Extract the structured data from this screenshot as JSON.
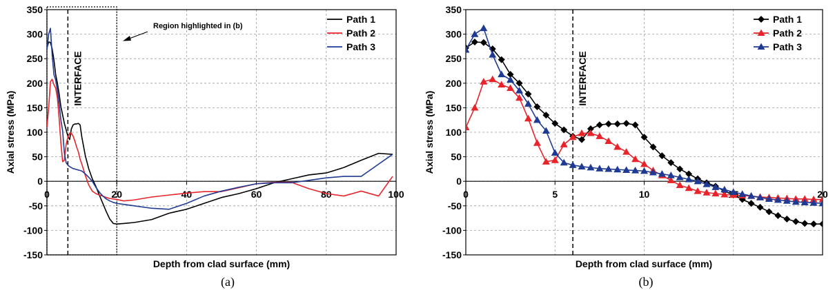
{
  "chart_data": [
    {
      "panel": "(a)",
      "type": "line",
      "xlabel": "Depth from clad surface (mm)",
      "ylabel": "Axial stress (MPa)",
      "xlim": [
        0,
        100
      ],
      "ylim": [
        -150,
        350
      ],
      "xticks": [
        "0",
        "20",
        "40",
        "60",
        "80",
        "100"
      ],
      "yticks": [
        "-150",
        "-100",
        "-50",
        "0",
        "50",
        "100",
        "150",
        "200",
        "250",
        "300",
        "350"
      ],
      "grid": true,
      "legend_position": "top-right",
      "annotation": "INTERFACE",
      "interface_x": 6,
      "highlight_note": "Region highlighted in (b)",
      "highlight_x": [
        0,
        20
      ],
      "series": [
        {
          "name": "Path 1",
          "color": "#000000",
          "x": [
            0,
            0.5,
            1,
            1.5,
            2,
            2.5,
            3,
            3.5,
            4,
            4.5,
            5,
            5.5,
            6,
            6.5,
            7,
            7.5,
            8,
            8.5,
            9,
            9.5,
            10,
            11,
            12,
            13,
            14,
            15,
            16,
            17,
            18,
            19,
            20,
            22,
            25,
            30,
            35,
            40,
            45,
            50,
            55,
            60,
            65,
            70,
            75,
            80,
            85,
            90,
            95,
            99
          ],
          "y": [
            272,
            284,
            283,
            270,
            248,
            218,
            200,
            178,
            152,
            135,
            118,
            105,
            92,
            85,
            107,
            115,
            117,
            117,
            118,
            115,
            90,
            52,
            25,
            5,
            -10,
            -28,
            -45,
            -62,
            -77,
            -86,
            -87,
            -86,
            -84,
            -78,
            -65,
            -57,
            -45,
            -33,
            -25,
            -15,
            -3,
            5,
            13,
            17,
            28,
            43,
            57,
            55
          ]
        },
        {
          "name": "Path 2",
          "color": "#e8232a",
          "x": [
            0,
            0.5,
            1,
            1.5,
            2,
            2.5,
            3,
            3.5,
            4,
            4.5,
            5,
            5.5,
            6,
            6.5,
            7,
            7.5,
            8,
            8.5,
            9,
            9.5,
            10,
            11,
            12,
            13,
            14,
            15,
            16,
            17,
            18,
            19,
            20,
            22,
            25,
            30,
            35,
            40,
            45,
            50,
            55,
            60,
            65,
            70,
            75,
            80,
            85,
            90,
            95,
            99
          ],
          "y": [
            110,
            150,
            203,
            208,
            197,
            190,
            170,
            128,
            78,
            40,
            43,
            75,
            90,
            98,
            98,
            92,
            82,
            70,
            60,
            45,
            35,
            12,
            -8,
            -20,
            -25,
            -28,
            -30,
            -33,
            -35,
            -36,
            -37,
            -40,
            -38,
            -32,
            -28,
            -24,
            -21,
            -21,
            -13,
            -5,
            -2,
            -2,
            -15,
            -25,
            -30,
            -20,
            -30,
            10
          ]
        },
        {
          "name": "Path 3",
          "color": "#1f3a93",
          "x": [
            0,
            0.5,
            1,
            1.5,
            2,
            2.5,
            3,
            3.5,
            4,
            4.5,
            5,
            5.5,
            6,
            6.5,
            7,
            7.5,
            8,
            8.5,
            9,
            9.5,
            10,
            11,
            12,
            13,
            14,
            15,
            16,
            17,
            18,
            19,
            20,
            22,
            25,
            30,
            35,
            40,
            45,
            50,
            55,
            60,
            65,
            70,
            75,
            80,
            85,
            90,
            95,
            99
          ],
          "y": [
            268,
            300,
            312,
            258,
            218,
            207,
            185,
            158,
            125,
            103,
            58,
            38,
            33,
            30,
            28,
            26,
            25,
            24,
            23,
            22,
            21,
            15,
            8,
            0,
            -12,
            -22,
            -30,
            -36,
            -40,
            -43,
            -45,
            -47,
            -50,
            -55,
            -57,
            -45,
            -30,
            -20,
            -12,
            -5,
            -3,
            -3,
            2,
            7,
            10,
            10,
            35,
            55
          ]
        }
      ]
    },
    {
      "panel": "(b)",
      "type": "line",
      "xlabel": "Depth from clad surface (mm)",
      "ylabel": "Axial stress (MPa)",
      "xlim": [
        0,
        20
      ],
      "ylim": [
        -150,
        350
      ],
      "xticks": [
        "0",
        "5",
        "10",
        "15",
        "20"
      ],
      "yticks": [
        "-150",
        "-100",
        "-50",
        "0",
        "50",
        "100",
        "150",
        "200",
        "250",
        "300",
        "350"
      ],
      "grid": true,
      "legend_position": "top-right",
      "annotation": "INTERFACE",
      "interface_x": 6,
      "series": [
        {
          "name": "Path 1",
          "color": "#000000",
          "marker": "diamond",
          "x": [
            0,
            0.5,
            1,
            1.5,
            2,
            2.5,
            3,
            3.5,
            4,
            4.5,
            5,
            5.5,
            6,
            6.5,
            7,
            7.5,
            8,
            8.5,
            9,
            9.5,
            10,
            10.5,
            11,
            11.5,
            12,
            12.5,
            13,
            13.5,
            14,
            14.5,
            15,
            15.5,
            16,
            16.5,
            17,
            17.5,
            18,
            18.5,
            19,
            19.5,
            20
          ],
          "y": [
            272,
            284,
            283,
            270,
            248,
            218,
            200,
            178,
            152,
            135,
            118,
            105,
            92,
            85,
            107,
            115,
            117,
            117,
            118,
            115,
            90,
            70,
            52,
            38,
            25,
            15,
            5,
            -3,
            -10,
            -20,
            -28,
            -37,
            -45,
            -53,
            -62,
            -70,
            -77,
            -82,
            -86,
            -87,
            -87
          ]
        },
        {
          "name": "Path 2",
          "color": "#e8232a",
          "marker": "triangle",
          "x": [
            0,
            0.5,
            1,
            1.5,
            2,
            2.5,
            3,
            3.5,
            4,
            4.5,
            5,
            5.5,
            6,
            6.5,
            7,
            7.5,
            8,
            8.5,
            9,
            9.5,
            10,
            10.5,
            11,
            11.5,
            12,
            12.5,
            13,
            13.5,
            14,
            14.5,
            15,
            15.5,
            16,
            16.5,
            17,
            17.5,
            18,
            18.5,
            19,
            19.5,
            20
          ],
          "y": [
            110,
            150,
            203,
            208,
            197,
            190,
            170,
            128,
            78,
            40,
            43,
            75,
            90,
            98,
            98,
            92,
            82,
            70,
            60,
            45,
            35,
            22,
            12,
            2,
            -8,
            -14,
            -20,
            -23,
            -25,
            -27,
            -28,
            -29,
            -30,
            -32,
            -33,
            -34,
            -35,
            -36,
            -36,
            -37,
            -37
          ]
        },
        {
          "name": "Path 3",
          "color": "#1f3a93",
          "marker": "triangle",
          "x": [
            0,
            0.5,
            1,
            1.5,
            2,
            2.5,
            3,
            3.5,
            4,
            4.5,
            5,
            5.5,
            6,
            6.5,
            7,
            7.5,
            8,
            8.5,
            9,
            9.5,
            10,
            10.5,
            11,
            11.5,
            12,
            12.5,
            13,
            13.5,
            14,
            14.5,
            15,
            15.5,
            16,
            16.5,
            17,
            17.5,
            18,
            18.5,
            19,
            19.5,
            20
          ],
          "y": [
            268,
            300,
            312,
            258,
            218,
            207,
            185,
            158,
            125,
            103,
            58,
            38,
            33,
            30,
            28,
            26,
            25,
            24,
            23,
            22,
            21,
            18,
            15,
            12,
            8,
            4,
            0,
            -6,
            -12,
            -17,
            -22,
            -26,
            -30,
            -33,
            -36,
            -38,
            -40,
            -42,
            -43,
            -44,
            -45
          ]
        }
      ]
    }
  ]
}
